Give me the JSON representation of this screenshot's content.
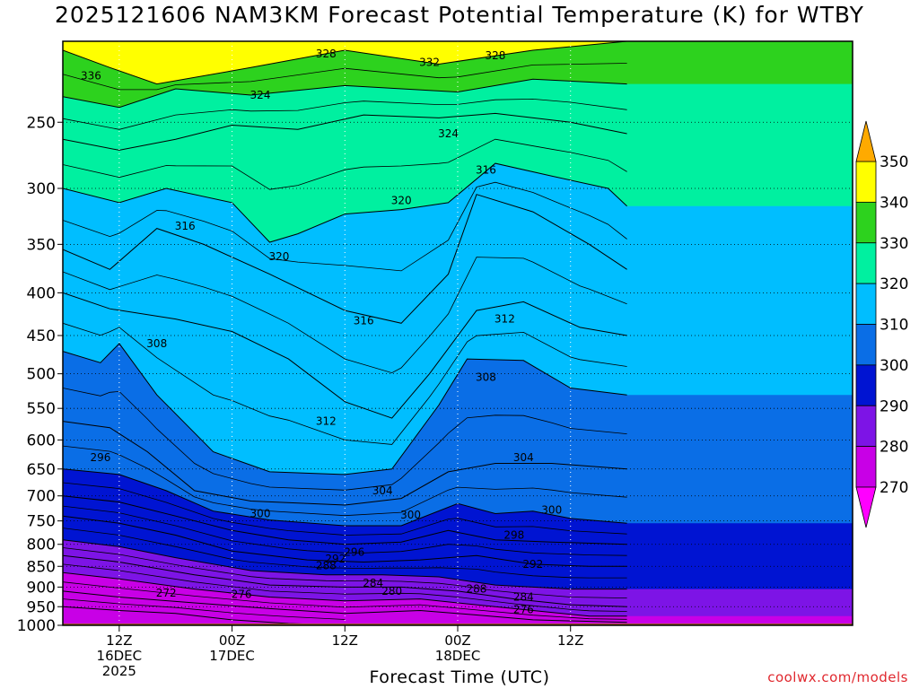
{
  "chart_data": {
    "type": "heatmap",
    "title": "2025121606 NAM3KM Forecast Potential Temperature (K) for WTBY",
    "xlabel": "Forecast Time (UTC)",
    "ylabel": "",
    "credit": "coolwx.com/models",
    "y_axis": {
      "scale": "pressure",
      "range": [
        1000,
        200
      ],
      "ticks": [
        "250",
        "300",
        "350",
        "400",
        "450",
        "500",
        "550",
        "600",
        "650",
        "700",
        "750",
        "800",
        "850",
        "900",
        "950",
        "1000"
      ]
    },
    "x_axis": {
      "range_hours": [
        0,
        84
      ],
      "ticks": [
        {
          "hour": 6,
          "lines": [
            "12Z",
            "16DEC",
            "2025"
          ]
        },
        {
          "hour": 18,
          "lines": [
            "00Z",
            "17DEC"
          ]
        },
        {
          "hour": 30,
          "lines": [
            "12Z"
          ]
        },
        {
          "hour": 42,
          "lines": [
            "00Z",
            "18DEC"
          ]
        },
        {
          "hour": 54,
          "lines": [
            "12Z"
          ]
        }
      ]
    },
    "grid": true,
    "colorbar": {
      "labels": [
        "350",
        "340",
        "330",
        "320",
        "310",
        "300",
        "290",
        "280",
        "270"
      ],
      "bins": [
        {
          "min": 260,
          "max": 270,
          "color": "#ff00ff"
        },
        {
          "min": 270,
          "max": 280,
          "color": "#c800e6"
        },
        {
          "min": 280,
          "max": 290,
          "color": "#7d14e6"
        },
        {
          "min": 290,
          "max": 300,
          "color": "#0014d2"
        },
        {
          "min": 300,
          "max": 310,
          "color": "#0a6ee6"
        },
        {
          "min": 310,
          "max": 320,
          "color": "#00beff"
        },
        {
          "min": 320,
          "max": 330,
          "color": "#00f0a0"
        },
        {
          "min": 330,
          "max": 340,
          "color": "#2dd21e"
        },
        {
          "min": 340,
          "max": 350,
          "color": "#ffff00"
        },
        {
          "min": 350,
          "max": 360,
          "color": "#ffaa00"
        }
      ]
    },
    "contour_interval_K": 2,
    "surface_color": "#a0522d",
    "isentropes": [
      {
        "theta": 336,
        "points": [
          [
            0,
            205
          ],
          [
            5,
            215
          ],
          [
            10,
            225
          ],
          [
            20,
            215
          ],
          [
            30,
            205
          ],
          [
            40,
            213
          ],
          [
            50,
            205
          ],
          [
            60,
            200
          ]
        ]
      },
      {
        "theta": 328,
        "points": [
          [
            0,
            233
          ],
          [
            6,
            240
          ],
          [
            12,
            228
          ],
          [
            20,
            232
          ],
          [
            30,
            226
          ],
          [
            42,
            230
          ],
          [
            50,
            222
          ],
          [
            60,
            225
          ]
        ]
      },
      {
        "theta": 324,
        "points": [
          [
            0,
            262
          ],
          [
            6,
            270
          ],
          [
            12,
            262
          ],
          [
            18,
            252
          ],
          [
            25,
            255
          ],
          [
            32,
            245
          ],
          [
            40,
            247
          ],
          [
            46,
            244
          ],
          [
            54,
            250
          ],
          [
            60,
            258
          ]
        ]
      },
      {
        "theta": 320,
        "points": [
          [
            0,
            300
          ],
          [
            6,
            312
          ],
          [
            11,
            300
          ],
          [
            18,
            312
          ],
          [
            22,
            348
          ],
          [
            25,
            340
          ],
          [
            30,
            322
          ],
          [
            36,
            318
          ],
          [
            41,
            312
          ],
          [
            46,
            280
          ],
          [
            52,
            290
          ],
          [
            58,
            300
          ],
          [
            60,
            315
          ]
        ]
      },
      {
        "theta": 316,
        "points": [
          [
            0,
            355
          ],
          [
            5,
            375
          ],
          [
            10,
            335
          ],
          [
            15,
            350
          ],
          [
            22,
            380
          ],
          [
            30,
            420
          ],
          [
            36,
            435
          ],
          [
            41,
            380
          ],
          [
            44,
            305
          ],
          [
            50,
            320
          ],
          [
            56,
            350
          ],
          [
            60,
            375
          ]
        ]
      },
      {
        "theta": 312,
        "points": [
          [
            0,
            400
          ],
          [
            5,
            418
          ],
          [
            12,
            430
          ],
          [
            18,
            445
          ],
          [
            24,
            480
          ],
          [
            30,
            540
          ],
          [
            35,
            565
          ],
          [
            39,
            500
          ],
          [
            44,
            420
          ],
          [
            49,
            410
          ],
          [
            55,
            440
          ],
          [
            60,
            450
          ]
        ]
      },
      {
        "theta": 308,
        "points": [
          [
            0,
            470
          ],
          [
            4,
            485
          ],
          [
            6,
            460
          ],
          [
            10,
            530
          ],
          [
            16,
            620
          ],
          [
            22,
            655
          ],
          [
            30,
            660
          ],
          [
            35,
            650
          ],
          [
            40,
            545
          ],
          [
            43,
            480
          ],
          [
            49,
            482
          ],
          [
            54,
            520
          ],
          [
            60,
            530
          ]
        ]
      },
      {
        "theta": 304,
        "points": [
          [
            0,
            570
          ],
          [
            5,
            580
          ],
          [
            9,
            620
          ],
          [
            14,
            690
          ],
          [
            20,
            710
          ],
          [
            30,
            718
          ],
          [
            36,
            705
          ],
          [
            41,
            655
          ],
          [
            46,
            640
          ],
          [
            52,
            640
          ],
          [
            60,
            650
          ]
        ]
      },
      {
        "theta": 300,
        "points": [
          [
            0,
            650
          ],
          [
            6,
            660
          ],
          [
            11,
            690
          ],
          [
            16,
            730
          ],
          [
            22,
            748
          ],
          [
            30,
            760
          ],
          [
            36,
            760
          ],
          [
            42,
            715
          ],
          [
            46,
            735
          ],
          [
            50,
            730
          ],
          [
            54,
            745
          ],
          [
            60,
            755
          ]
        ]
      },
      {
        "theta": 296,
        "points": [
          [
            0,
            700
          ],
          [
            6,
            712
          ],
          [
            12,
            740
          ],
          [
            18,
            770
          ],
          [
            24,
            790
          ],
          [
            30,
            800
          ],
          [
            36,
            795
          ],
          [
            41,
            770
          ],
          [
            46,
            790
          ],
          [
            52,
            795
          ],
          [
            60,
            800
          ]
        ]
      },
      {
        "theta": 292,
        "points": [
          [
            0,
            740
          ],
          [
            6,
            755
          ],
          [
            12,
            780
          ],
          [
            18,
            815
          ],
          [
            26,
            835
          ],
          [
            32,
            840
          ],
          [
            38,
            835
          ],
          [
            44,
            825
          ],
          [
            50,
            845
          ],
          [
            56,
            850
          ],
          [
            60,
            850
          ]
        ]
      },
      {
        "theta": 288,
        "points": [
          [
            0,
            790
          ],
          [
            6,
            805
          ],
          [
            12,
            830
          ],
          [
            20,
            860
          ],
          [
            28,
            870
          ],
          [
            34,
            870
          ],
          [
            40,
            875
          ],
          [
            46,
            895
          ],
          [
            54,
            905
          ],
          [
            60,
            905
          ]
        ]
      },
      {
        "theta": 284,
        "points": [
          [
            0,
            825
          ],
          [
            6,
            840
          ],
          [
            14,
            870
          ],
          [
            22,
            895
          ],
          [
            30,
            900
          ],
          [
            36,
            900
          ],
          [
            42,
            910
          ],
          [
            48,
            930
          ],
          [
            54,
            945
          ],
          [
            60,
            950
          ]
        ]
      },
      {
        "theta": 280,
        "points": [
          [
            0,
            865
          ],
          [
            6,
            880
          ],
          [
            14,
            905
          ],
          [
            22,
            925
          ],
          [
            30,
            935
          ],
          [
            38,
            930
          ],
          [
            44,
            945
          ],
          [
            50,
            960
          ],
          [
            56,
            975
          ],
          [
            60,
            975
          ]
        ]
      },
      {
        "theta": 276,
        "points": [
          [
            0,
            910
          ],
          [
            6,
            925
          ],
          [
            14,
            940
          ],
          [
            22,
            955
          ],
          [
            30,
            968
          ],
          [
            38,
            960
          ],
          [
            44,
            972
          ],
          [
            50,
            985
          ],
          [
            60,
            992
          ]
        ]
      },
      {
        "theta": 272,
        "points": [
          [
            0,
            950
          ],
          [
            6,
            960
          ],
          [
            12,
            968
          ],
          [
            18,
            985
          ],
          [
            24,
            995
          ],
          [
            30,
            1000
          ]
        ]
      }
    ],
    "contour_labels": [
      {
        "text": "336",
        "hour": 3,
        "p": 220
      },
      {
        "text": "328",
        "hour": 28,
        "p": 207
      },
      {
        "text": "332",
        "hour": 39,
        "p": 212
      },
      {
        "text": "328",
        "hour": 46,
        "p": 208
      },
      {
        "text": "324",
        "hour": 21,
        "p": 232
      },
      {
        "text": "324",
        "hour": 41,
        "p": 258
      },
      {
        "text": "316",
        "hour": 45,
        "p": 285
      },
      {
        "text": "320",
        "hour": 36,
        "p": 310
      },
      {
        "text": "316",
        "hour": 13,
        "p": 333
      },
      {
        "text": "320",
        "hour": 23,
        "p": 362
      },
      {
        "text": "316",
        "hour": 32,
        "p": 432
      },
      {
        "text": "312",
        "hour": 47,
        "p": 430
      },
      {
        "text": "308",
        "hour": 10,
        "p": 460
      },
      {
        "text": "308",
        "hour": 45,
        "p": 505
      },
      {
        "text": "312",
        "hour": 28,
        "p": 570
      },
      {
        "text": "296",
        "hour": 4,
        "p": 630
      },
      {
        "text": "304",
        "hour": 49,
        "p": 630
      },
      {
        "text": "304",
        "hour": 34,
        "p": 690
      },
      {
        "text": "300",
        "hour": 21,
        "p": 735
      },
      {
        "text": "300",
        "hour": 37,
        "p": 738
      },
      {
        "text": "300",
        "hour": 52,
        "p": 728
      },
      {
        "text": "298",
        "hour": 48,
        "p": 780
      },
      {
        "text": "296",
        "hour": 31,
        "p": 818
      },
      {
        "text": "292",
        "hour": 29,
        "p": 833
      },
      {
        "text": "288",
        "hour": 28,
        "p": 848
      },
      {
        "text": "292",
        "hour": 50,
        "p": 845
      },
      {
        "text": "284",
        "hour": 33,
        "p": 890
      },
      {
        "text": "280",
        "hour": 35,
        "p": 910
      },
      {
        "text": "288",
        "hour": 44,
        "p": 905
      },
      {
        "text": "284",
        "hour": 49,
        "p": 925
      },
      {
        "text": "276",
        "hour": 19,
        "p": 918
      },
      {
        "text": "272",
        "hour": 11,
        "p": 915
      },
      {
        "text": "276",
        "hour": 49,
        "p": 958
      }
    ]
  }
}
